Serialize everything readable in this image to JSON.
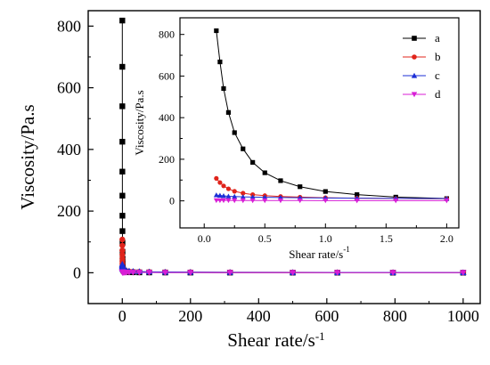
{
  "chart_data": [
    {
      "type": "line",
      "role": "main",
      "xlabel": "Shear rate/s",
      "xlabel_sup": "-1",
      "ylabel": "Viscosity/Pa.s",
      "xlim": [
        -100,
        1050
      ],
      "ylim": [
        -100,
        850
      ],
      "xticks": [
        0,
        200,
        400,
        600,
        800,
        1000
      ],
      "yticks": [
        0,
        200,
        400,
        600,
        800
      ],
      "grid": false,
      "series": [
        {
          "name": "a",
          "color": "#000000",
          "marker": "square",
          "x": [
            0.1,
            0.13,
            0.16,
            0.2,
            0.25,
            0.32,
            0.4,
            0.5,
            0.63,
            0.79,
            1.0,
            1.26,
            1.58,
            2.0,
            3.16,
            5,
            7.9,
            12.6,
            20,
            31.6,
            50,
            79,
            126,
            200,
            316,
            500,
            631,
            794,
            1000
          ],
          "y": [
            818,
            668,
            540,
            425,
            328,
            250,
            185,
            135,
            97,
            68,
            45,
            30,
            18,
            11,
            7,
            5,
            3.5,
            2.5,
            2,
            1.5,
            1.2,
            1,
            0.8,
            0.6,
            0.5,
            0.4,
            0.35,
            0.3,
            0.25
          ]
        },
        {
          "name": "b",
          "color": "#e0241b",
          "marker": "circle",
          "x": [
            0.1,
            0.13,
            0.16,
            0.2,
            0.25,
            0.32,
            0.4,
            0.5,
            0.63,
            0.79,
            1.0,
            1.26,
            1.58,
            2.0,
            3.16,
            5,
            7.9,
            12.6,
            20,
            31.6,
            50,
            79,
            126,
            200,
            316,
            500,
            631,
            794,
            1000
          ],
          "y": [
            108,
            88,
            72,
            58,
            46,
            37,
            30,
            25,
            21,
            18,
            15,
            13,
            11,
            10,
            8,
            7,
            6,
            5,
            4,
            3.5,
            3,
            2.5,
            2,
            1.8,
            1.5,
            1.3,
            1.2,
            1.1,
            1
          ]
        },
        {
          "name": "c",
          "color": "#1c2fd6",
          "marker": "triangle",
          "x": [
            0.1,
            0.13,
            0.16,
            0.2,
            0.25,
            0.32,
            0.4,
            0.5,
            0.63,
            0.79,
            1.0,
            1.26,
            1.58,
            2.0,
            3.16,
            5,
            7.9,
            12.6,
            20,
            31.6,
            50,
            79,
            126,
            200,
            316,
            500,
            631,
            794,
            1000
          ],
          "y": [
            28,
            26,
            24,
            22,
            21,
            19,
            18,
            17,
            16,
            15,
            14,
            13,
            12,
            11,
            10,
            9,
            8,
            7,
            6,
            5,
            4,
            3,
            2.5,
            2,
            1.5,
            1.2,
            1,
            0.9,
            0.8
          ]
        },
        {
          "name": "d",
          "color": "#d81ed6",
          "marker": "triangle-down",
          "x": [
            0.1,
            0.13,
            0.16,
            0.2,
            0.25,
            0.32,
            0.4,
            0.5,
            0.63,
            0.79,
            1.0,
            1.26,
            1.58,
            2.0,
            3.16,
            5,
            7.9,
            12.6,
            20,
            31.6,
            50,
            79,
            126,
            200,
            316,
            500,
            631,
            794,
            1000
          ],
          "y": [
            2,
            2,
            2,
            2,
            1.8,
            1.8,
            1.6,
            1.5,
            1.5,
            1.4,
            1.3,
            1.2,
            1.1,
            1,
            1,
            1,
            0.9,
            0.9,
            0.8,
            0.8,
            0.7,
            0.7,
            0.6,
            0.6,
            0.5,
            0.5,
            0.5,
            0.5,
            0.5
          ]
        }
      ]
    },
    {
      "type": "line",
      "role": "inset",
      "xlabel": "Shear rate/s",
      "xlabel_sup": "-1",
      "ylabel": "Viscosity/Pa.s",
      "xlim": [
        -0.2,
        2.1
      ],
      "ylim": [
        -130,
        880
      ],
      "xticks": [
        0.0,
        0.5,
        1.0,
        1.5,
        2.0
      ],
      "xtick_labels": [
        "0.0",
        "0.5",
        "1.0",
        "1.5",
        "2.0"
      ],
      "yticks": [
        0,
        200,
        400,
        600,
        800
      ],
      "grid": false,
      "legend": "top-right",
      "series_ref": "main"
    }
  ]
}
